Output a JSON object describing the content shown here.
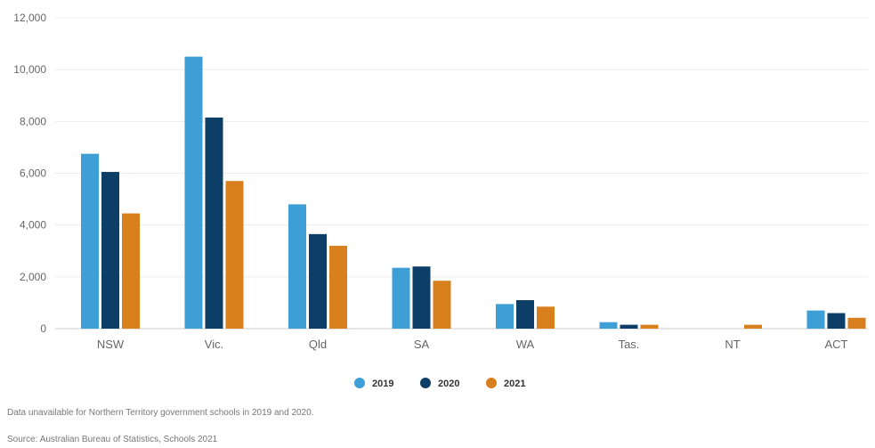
{
  "chart_data": {
    "type": "bar",
    "categories": [
      "NSW",
      "Vic.",
      "Qld",
      "SA",
      "WA",
      "Tas.",
      "NT",
      "ACT"
    ],
    "series": [
      {
        "name": "2019",
        "color": "#3d9fd6",
        "values": [
          6750,
          10500,
          4800,
          2350,
          950,
          250,
          null,
          700
        ]
      },
      {
        "name": "2020",
        "color": "#0d3e67",
        "values": [
          6050,
          8150,
          3650,
          2400,
          1100,
          150,
          null,
          600
        ]
      },
      {
        "name": "2021",
        "color": "#d9801e",
        "values": [
          4450,
          5700,
          3200,
          1850,
          850,
          150,
          150,
          420
        ]
      }
    ],
    "ylim": [
      0,
      12000
    ],
    "yticks": [
      0,
      2000,
      4000,
      6000,
      8000,
      10000,
      12000
    ],
    "ytick_labels": [
      "0",
      "2,000",
      "4,000",
      "6,000",
      "8,000",
      "10,000",
      "12,000"
    ],
    "grid": true,
    "legend_position": "bottom-center",
    "title": "",
    "xlabel": "",
    "ylabel": ""
  },
  "notes": {
    "footnote": "Data unavailable for Northern Territory government schools in 2019 and 2020.",
    "source": "Source: Australian Bureau of Statistics, Schools 2021"
  }
}
